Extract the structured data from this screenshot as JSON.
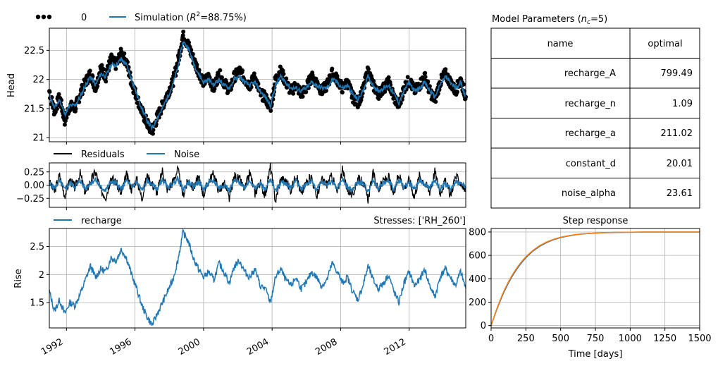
{
  "colors": {
    "observed": "#000000",
    "simulation": "#1f77b4",
    "residuals": "#000000",
    "noise": "#1f77b4",
    "recharge": "#1f77b4",
    "step_blue": "#1f77b4",
    "step_orange": "#ff7f0e",
    "grid": "#b0b0b0"
  },
  "table": {
    "title_text": "Model Parameters (",
    "title_var": "n",
    "title_sub": "c",
    "title_rest": "=5)",
    "headers": [
      "name",
      "optimal"
    ],
    "rows": [
      [
        "recharge_A",
        "799.49"
      ],
      [
        "recharge_n",
        "1.09"
      ],
      [
        "recharge_a",
        "211.02"
      ],
      [
        "constant_d",
        "20.01"
      ],
      [
        "noise_alpha",
        "23.61"
      ]
    ]
  },
  "chart_data": [
    {
      "type": "scatter",
      "id": "head",
      "ylabel": "Head",
      "ylim": [
        20.93,
        22.88
      ],
      "yticks": [
        21.0,
        21.5,
        22.0,
        22.5
      ],
      "xlim": [
        1991.0,
        2015.3
      ],
      "grid": true,
      "legend": {
        "placement": "top-left",
        "entries": [
          "0",
          "Simulation (R²=88.75%)"
        ]
      },
      "legend_sim_prefix": "Simulation (",
      "legend_sim_var": "R",
      "legend_sim_sup": "2",
      "legend_sim_rest": "=88.75%)",
      "series": [
        {
          "name": "0",
          "kind": "points",
          "color": "#000000"
        },
        {
          "name": "Simulation",
          "kind": "line",
          "color": "#1f77b4"
        }
      ],
      "x": [
        1991.0,
        1991.3,
        1991.6,
        1991.9,
        1992.2,
        1992.5,
        1992.8,
        1993.1,
        1993.4,
        1993.7,
        1994.0,
        1994.3,
        1994.6,
        1994.9,
        1995.2,
        1995.5,
        1995.8,
        1996.1,
        1996.4,
        1996.7,
        1997.0,
        1997.3,
        1997.6,
        1997.9,
        1998.2,
        1998.5,
        1998.8,
        1999.1,
        1999.4,
        1999.7,
        2000.0,
        2000.3,
        2000.6,
        2000.9,
        2001.2,
        2001.5,
        2001.8,
        2002.1,
        2002.4,
        2002.7,
        2003.0,
        2003.3,
        2003.6,
        2003.9,
        2004.2,
        2004.5,
        2004.8,
        2005.1,
        2005.4,
        2005.7,
        2006.0,
        2006.3,
        2006.6,
        2006.9,
        2007.2,
        2007.5,
        2007.8,
        2008.1,
        2008.4,
        2008.7,
        2009.0,
        2009.3,
        2009.6,
        2009.9,
        2010.2,
        2010.5,
        2010.8,
        2011.1,
        2011.4,
        2011.7,
        2012.0,
        2012.3,
        2012.6,
        2012.9,
        2013.2,
        2013.5,
        2013.8,
        2014.1,
        2014.4,
        2014.7,
        2015.0,
        2015.3
      ],
      "observed": [
        21.8,
        21.45,
        21.7,
        21.3,
        21.55,
        21.5,
        21.75,
        21.95,
        22.1,
        21.85,
        22.2,
        22.05,
        22.35,
        22.25,
        22.45,
        22.3,
        21.95,
        21.7,
        21.45,
        21.25,
        21.1,
        21.35,
        21.55,
        21.75,
        21.95,
        22.3,
        22.75,
        22.6,
        22.35,
        22.15,
        21.95,
        22.05,
        21.85,
        22.1,
        21.95,
        21.8,
        22.05,
        22.15,
        22.0,
        21.9,
        22.05,
        21.75,
        21.7,
        21.5,
        22.0,
        22.15,
        21.95,
        21.8,
        21.9,
        21.75,
        21.85,
        22.05,
        21.95,
        21.8,
        21.9,
        22.1,
        22.0,
        21.85,
        21.95,
        21.7,
        21.6,
        21.8,
        22.15,
        21.9,
        21.75,
        21.85,
        21.95,
        21.7,
        21.55,
        21.85,
        22.0,
        21.8,
        21.9,
        22.05,
        21.8,
        21.65,
        21.95,
        22.1,
        21.95,
        21.8,
        22.0,
        21.7
      ],
      "simulation": [
        21.75,
        21.5,
        21.65,
        21.4,
        21.55,
        21.55,
        21.7,
        21.9,
        22.05,
        21.9,
        22.1,
        22.05,
        22.25,
        22.25,
        22.35,
        22.25,
        22.0,
        21.75,
        21.5,
        21.3,
        21.15,
        21.35,
        21.5,
        21.7,
        21.9,
        22.2,
        22.65,
        22.55,
        22.3,
        22.1,
        21.95,
        22.0,
        21.9,
        22.0,
        21.9,
        21.85,
        22.0,
        22.05,
        21.95,
        21.9,
        21.95,
        21.8,
        21.7,
        21.55,
        21.9,
        22.05,
        21.95,
        21.85,
        21.85,
        21.8,
        21.85,
        21.95,
        21.9,
        21.85,
        21.85,
        22.0,
        21.95,
        21.85,
        21.9,
        21.75,
        21.65,
        21.8,
        22.05,
        21.9,
        21.8,
        21.85,
        21.9,
        21.75,
        21.6,
        21.8,
        21.95,
        21.8,
        21.85,
        21.95,
        21.8,
        21.7,
        21.9,
        22.05,
        21.95,
        21.85,
        21.95,
        21.7
      ]
    },
    {
      "type": "line",
      "id": "residuals",
      "ylim": [
        -0.42,
        0.42
      ],
      "yticks": [
        -0.25,
        0.0,
        0.25
      ],
      "ytick_labels": [
        "−0.25",
        "0.00",
        "0.25"
      ],
      "xlim": [
        1991.0,
        2015.3
      ],
      "grid": true,
      "legend": {
        "placement": "top-left",
        "entries": [
          "Residuals",
          "Noise"
        ]
      },
      "series": [
        {
          "name": "Residuals",
          "color": "#000000",
          "values": [
            0.05,
            -0.12,
            0.18,
            -0.2,
            0.1,
            -0.05,
            0.22,
            -0.15,
            0.08,
            0.25,
            -0.1,
            -0.22,
            0.15,
            0.05,
            -0.18,
            0.2,
            -0.08,
            0.12,
            -0.25,
            0.18,
            0.02,
            -0.14,
            0.28,
            -0.1,
            0.06,
            0.3,
            -0.2,
            0.1,
            -0.05,
            0.15,
            -0.18,
            0.08,
            0.22,
            -0.12,
            0.04,
            -0.26,
            0.18,
            0.1,
            -0.08,
            0.24,
            -0.15,
            0.05,
            -0.2,
            0.35,
            -0.3,
            0.12,
            0.08,
            -0.1,
            0.2,
            -0.18,
            0.06,
            0.16,
            -0.22,
            0.1,
            0.02,
            0.18,
            -0.15,
            0.28,
            -0.08,
            -0.2,
            0.12,
            0.05,
            -0.26,
            0.22,
            -0.1,
            0.08,
            0.15,
            -0.18,
            0.2,
            -0.05,
            0.1,
            -0.22,
            0.18,
            0.04,
            -0.12,
            0.26,
            -0.15,
            0.08,
            -0.2,
            0.16,
            0.05,
            -0.1
          ]
        },
        {
          "name": "Noise",
          "color": "#1f77b4",
          "values": [
            0.03,
            -0.06,
            0.08,
            -0.09,
            0.05,
            -0.03,
            0.09,
            -0.07,
            0.04,
            0.1,
            -0.05,
            -0.09,
            0.07,
            0.03,
            -0.08,
            0.09,
            -0.04,
            0.06,
            -0.1,
            0.08,
            0.01,
            -0.07,
            0.11,
            -0.05,
            0.03,
            0.12,
            -0.09,
            0.05,
            -0.03,
            0.07,
            -0.08,
            0.04,
            0.09,
            -0.06,
            0.02,
            -0.1,
            0.08,
            0.05,
            -0.04,
            0.1,
            -0.07,
            0.03,
            -0.09,
            0.13,
            -0.12,
            0.06,
            0.04,
            -0.05,
            0.09,
            -0.08,
            0.03,
            0.07,
            -0.09,
            0.05,
            0.01,
            0.08,
            -0.07,
            0.11,
            -0.04,
            -0.09,
            0.06,
            0.03,
            -0.1,
            0.09,
            -0.05,
            0.04,
            0.07,
            -0.08,
            0.09,
            -0.03,
            0.05,
            -0.09,
            0.08,
            0.02,
            -0.06,
            0.1,
            -0.07,
            0.04,
            -0.09,
            0.07,
            0.03,
            -0.05
          ]
        }
      ]
    },
    {
      "type": "line",
      "id": "recharge",
      "ylabel": "Rise",
      "ylim": [
        1.05,
        2.82
      ],
      "yticks": [
        1.5,
        2.0,
        2.5
      ],
      "xlim": [
        1991.0,
        2015.3
      ],
      "xticks": [
        1992,
        1996,
        2000,
        2004,
        2008,
        2012
      ],
      "xtick_labels": [
        "1992",
        "1996",
        "2000",
        "2004",
        "2008",
        "2012"
      ],
      "grid": true,
      "legend": {
        "placement": "top-left",
        "entries": [
          "recharge"
        ]
      },
      "annotation": "Stresses: ['RH_260']",
      "series": [
        {
          "name": "recharge",
          "color": "#1f77b4",
          "values": [
            1.7,
            1.35,
            1.55,
            1.3,
            1.5,
            1.45,
            1.65,
            1.9,
            2.15,
            1.95,
            2.1,
            2.05,
            2.3,
            2.25,
            2.45,
            2.3,
            2.0,
            1.75,
            1.45,
            1.25,
            1.1,
            1.3,
            1.5,
            1.7,
            1.9,
            2.25,
            2.75,
            2.6,
            2.3,
            2.1,
            1.95,
            2.05,
            1.9,
            2.2,
            2.05,
            1.85,
            2.15,
            2.25,
            2.05,
            1.95,
            2.1,
            1.8,
            1.75,
            1.5,
            1.95,
            2.1,
            1.9,
            1.8,
            1.95,
            1.75,
            1.85,
            2.05,
            1.95,
            1.8,
            1.9,
            2.2,
            2.05,
            1.85,
            1.95,
            1.7,
            1.55,
            1.8,
            2.15,
            1.9,
            1.75,
            1.85,
            2.0,
            1.7,
            1.5,
            1.85,
            2.05,
            1.8,
            1.9,
            2.1,
            1.8,
            1.6,
            1.95,
            2.1,
            1.95,
            1.8,
            2.05,
            1.75
          ]
        }
      ]
    },
    {
      "type": "line",
      "id": "step",
      "title": "Step response",
      "xlabel": "Time [days]",
      "xlim": [
        0,
        1500
      ],
      "ylim": [
        -20,
        830
      ],
      "xticks": [
        0,
        250,
        500,
        750,
        1000,
        1250,
        1500
      ],
      "yticks": [
        0,
        200,
        400,
        600,
        800
      ],
      "grid": true,
      "x": [
        0,
        25,
        50,
        75,
        100,
        125,
        150,
        175,
        200,
        225,
        250,
        275,
        300,
        350,
        400,
        450,
        500,
        550,
        600,
        650,
        700,
        750,
        800,
        900,
        1000,
        1100,
        1200,
        1300,
        1400,
        1500
      ],
      "series": [
        {
          "name": "",
          "color": "#1f77b4",
          "values": [
            0,
            85,
            165,
            240,
            305,
            365,
            418,
            465,
            508,
            546,
            580,
            610,
            636,
            678,
            710,
            734,
            752,
            765,
            775,
            782,
            787,
            790,
            793,
            796,
            798,
            799,
            799,
            799,
            799,
            799
          ]
        },
        {
          "name": "",
          "color": "#ff7f0e",
          "values": [
            0,
            90,
            172,
            248,
            315,
            375,
            428,
            475,
            518,
            555,
            588,
            617,
            642,
            684,
            715,
            738,
            755,
            767,
            777,
            783,
            788,
            791,
            794,
            797,
            798,
            799,
            799,
            799,
            799,
            799
          ]
        }
      ]
    }
  ]
}
